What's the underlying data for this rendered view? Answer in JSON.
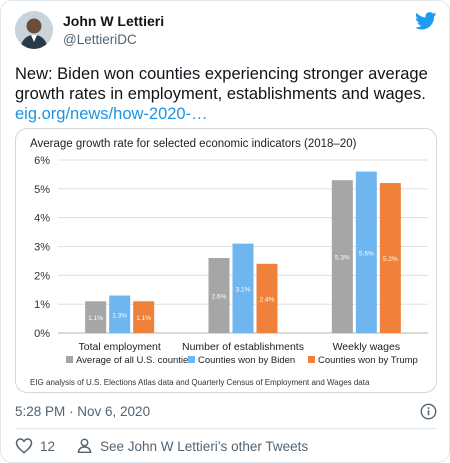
{
  "tweet": {
    "author_name": "John W Lettieri",
    "author_handle": "@LettieriDC",
    "text": "New: Biden won counties experiencing stronger average growth rates in employment, establishments and wages.",
    "link_text": "eig.org/news/how-2020-…",
    "timestamp": "5:28 PM · Nov 6, 2020",
    "like_count": "12",
    "see_more": "See John W Lettieri’s other Tweets",
    "icons": [
      "avatar",
      "twitter-bird-icon",
      "info-icon",
      "heart-icon",
      "person-icon"
    ]
  },
  "colors": {
    "twitter_blue": "#1d9bf0",
    "link": "#1b95e0",
    "series_all": "#a6a6a6",
    "series_biden": "#6fb6f0",
    "series_trump": "#f0813a"
  },
  "chart_data": {
    "type": "bar",
    "title": "Average growth rate for selected economic indicators (2018–20)",
    "categories": [
      "Total employment",
      "Number of establishments",
      "Weekly wages"
    ],
    "series": [
      {
        "name": "Average of all U.S. counties",
        "values": [
          1.1,
          2.6,
          5.3
        ],
        "labels": [
          "1.1%",
          "2.6%",
          "5.3%"
        ]
      },
      {
        "name": "Counties won by Biden",
        "values": [
          1.3,
          3.1,
          5.6
        ],
        "labels": [
          "1.3%",
          "3.1%",
          "5.6%"
        ]
      },
      {
        "name": "Counties won by Trump",
        "values": [
          1.1,
          2.4,
          5.2
        ],
        "labels": [
          "1.1%",
          "2.4%",
          "5.2%"
        ]
      }
    ],
    "ylim": [
      0,
      6
    ],
    "yticks": [
      0,
      1,
      2,
      3,
      4,
      5,
      6
    ],
    "ytick_labels": [
      "0%",
      "1%",
      "2%",
      "3%",
      "4%",
      "5%",
      "6%"
    ],
    "legend_position": "bottom",
    "grid": true,
    "source": "EIG analysis of U.S. Elections Atlas data and Quarterly Census of Employment and Wages data"
  }
}
